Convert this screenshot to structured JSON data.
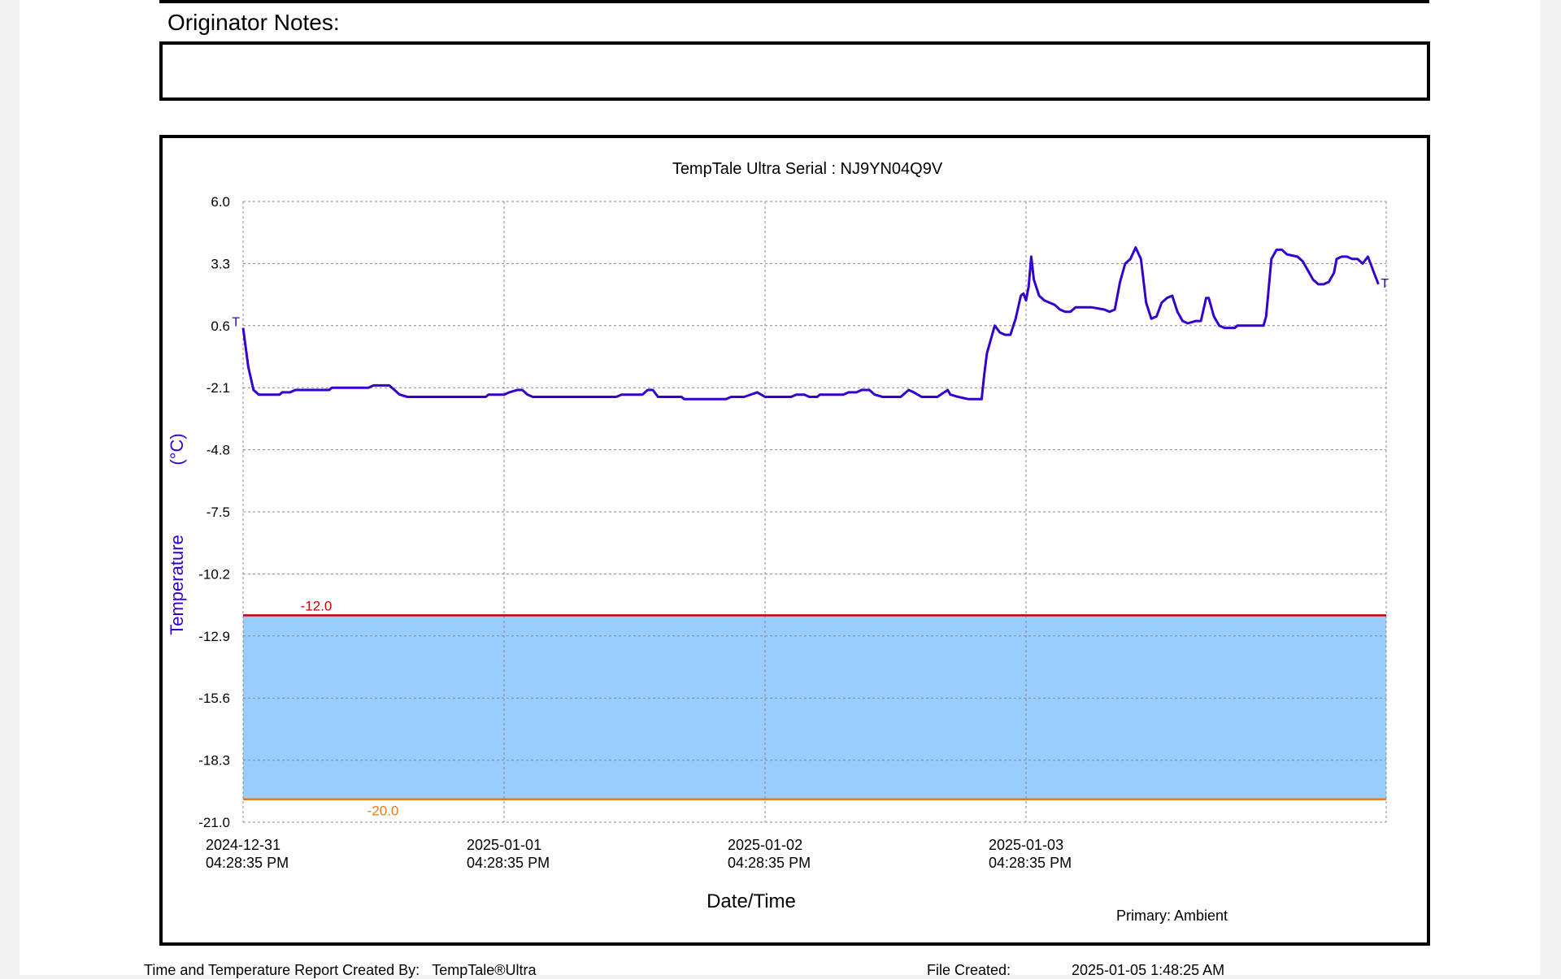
{
  "header": {
    "notes_label": "Originator Notes:"
  },
  "chart_data": {
    "type": "line",
    "title": "TempTale Ultra  Serial : NJ9YN04Q9V",
    "xlabel": "Date/Time",
    "ylabel_main": "Temperature",
    "ylabel_unit": "(°C)",
    "ylim": [
      -21.0,
      6.0
    ],
    "yticks": [
      "6.0",
      "3.3",
      "0.6",
      "-2.1",
      "-4.8",
      "-7.5",
      "-10.2",
      "-12.9",
      "-15.6",
      "-18.3",
      "-21.0"
    ],
    "xlim_days": [
      0,
      4.38
    ],
    "xticks": [
      {
        "day": 0,
        "date": "2024-12-31",
        "time": "04:28:35 PM"
      },
      {
        "day": 1,
        "date": "2025-01-01",
        "time": "04:28:35 PM"
      },
      {
        "day": 2,
        "date": "2025-01-02",
        "time": "04:28:35 PM"
      },
      {
        "day": 3,
        "date": "2025-01-03",
        "time": "04:28:35 PM"
      }
    ],
    "grid": true,
    "upper_limit": {
      "value": -12.0,
      "label": "-12.0",
      "color": "#cc0000"
    },
    "lower_limit": {
      "value": -20.0,
      "label": "-20.0",
      "color": "#e87a1e"
    },
    "band_color": "#99ccff",
    "series": [
      {
        "name": "Ambient",
        "color": "#3300cc",
        "points": [
          [
            0.0,
            0.5
          ],
          [
            0.02,
            -1.2
          ],
          [
            0.04,
            -2.2
          ],
          [
            0.06,
            -2.4
          ],
          [
            0.14,
            -2.4
          ],
          [
            0.15,
            -2.3
          ],
          [
            0.18,
            -2.3
          ],
          [
            0.2,
            -2.2
          ],
          [
            0.33,
            -2.2
          ],
          [
            0.34,
            -2.1
          ],
          [
            0.48,
            -2.1
          ],
          [
            0.5,
            -2.0
          ],
          [
            0.56,
            -2.0
          ],
          [
            0.58,
            -2.2
          ],
          [
            0.6,
            -2.4
          ],
          [
            0.63,
            -2.5
          ],
          [
            0.93,
            -2.5
          ],
          [
            0.94,
            -2.4
          ],
          [
            1.0,
            -2.4
          ],
          [
            1.02,
            -2.3
          ],
          [
            1.05,
            -2.2
          ],
          [
            1.07,
            -2.2
          ],
          [
            1.09,
            -2.4
          ],
          [
            1.11,
            -2.5
          ],
          [
            1.43,
            -2.5
          ],
          [
            1.45,
            -2.4
          ],
          [
            1.53,
            -2.4
          ],
          [
            1.55,
            -2.2
          ],
          [
            1.57,
            -2.2
          ],
          [
            1.59,
            -2.5
          ],
          [
            1.68,
            -2.5
          ],
          [
            1.69,
            -2.6
          ],
          [
            1.85,
            -2.6
          ],
          [
            1.87,
            -2.5
          ],
          [
            1.92,
            -2.5
          ],
          [
            1.97,
            -2.3
          ],
          [
            2.0,
            -2.5
          ],
          [
            2.1,
            -2.5
          ],
          [
            2.12,
            -2.4
          ],
          [
            2.15,
            -2.4
          ],
          [
            2.17,
            -2.5
          ],
          [
            2.2,
            -2.5
          ],
          [
            2.21,
            -2.4
          ],
          [
            2.3,
            -2.4
          ],
          [
            2.32,
            -2.3
          ],
          [
            2.35,
            -2.3
          ],
          [
            2.37,
            -2.2
          ],
          [
            2.4,
            -2.2
          ],
          [
            2.42,
            -2.4
          ],
          [
            2.45,
            -2.5
          ],
          [
            2.52,
            -2.5
          ],
          [
            2.55,
            -2.2
          ],
          [
            2.57,
            -2.3
          ],
          [
            2.6,
            -2.5
          ],
          [
            2.66,
            -2.5
          ],
          [
            2.7,
            -2.2
          ],
          [
            2.71,
            -2.4
          ],
          [
            2.74,
            -2.5
          ],
          [
            2.78,
            -2.6
          ],
          [
            2.83,
            -2.6
          ],
          [
            2.84,
            -1.5
          ],
          [
            2.85,
            -0.6
          ],
          [
            2.87,
            0.2
          ],
          [
            2.88,
            0.6
          ],
          [
            2.9,
            0.3
          ],
          [
            2.92,
            0.2
          ],
          [
            2.94,
            0.2
          ],
          [
            2.96,
            0.9
          ],
          [
            2.98,
            1.9
          ],
          [
            2.99,
            2.0
          ],
          [
            3.0,
            1.7
          ],
          [
            3.01,
            2.3
          ],
          [
            3.02,
            3.6
          ],
          [
            3.03,
            2.6
          ],
          [
            3.05,
            1.9
          ],
          [
            3.07,
            1.7
          ],
          [
            3.09,
            1.6
          ],
          [
            3.11,
            1.5
          ],
          [
            3.13,
            1.3
          ],
          [
            3.15,
            1.2
          ],
          [
            3.17,
            1.2
          ],
          [
            3.19,
            1.4
          ],
          [
            3.25,
            1.4
          ],
          [
            3.3,
            1.3
          ],
          [
            3.32,
            1.2
          ],
          [
            3.34,
            1.3
          ],
          [
            3.36,
            2.5
          ],
          [
            3.38,
            3.3
          ],
          [
            3.4,
            3.5
          ],
          [
            3.42,
            4.0
          ],
          [
            3.44,
            3.5
          ],
          [
            3.46,
            1.6
          ],
          [
            3.48,
            0.9
          ],
          [
            3.5,
            1.0
          ],
          [
            3.52,
            1.6
          ],
          [
            3.54,
            1.8
          ],
          [
            3.56,
            1.9
          ],
          [
            3.58,
            1.2
          ],
          [
            3.6,
            0.8
          ],
          [
            3.62,
            0.7
          ],
          [
            3.65,
            0.8
          ],
          [
            3.67,
            0.8
          ],
          [
            3.69,
            1.8
          ],
          [
            3.7,
            1.8
          ],
          [
            3.72,
            1.0
          ],
          [
            3.74,
            0.6
          ],
          [
            3.76,
            0.5
          ],
          [
            3.8,
            0.5
          ],
          [
            3.81,
            0.6
          ],
          [
            3.85,
            0.6
          ],
          [
            3.91,
            0.6
          ],
          [
            3.92,
            1.0
          ],
          [
            3.94,
            3.5
          ],
          [
            3.96,
            3.9
          ],
          [
            3.98,
            3.9
          ],
          [
            4.0,
            3.7
          ],
          [
            4.04,
            3.6
          ],
          [
            4.06,
            3.4
          ],
          [
            4.08,
            3.0
          ],
          [
            4.1,
            2.6
          ],
          [
            4.12,
            2.4
          ],
          [
            4.14,
            2.4
          ],
          [
            4.16,
            2.5
          ],
          [
            4.18,
            2.9
          ],
          [
            4.19,
            3.5
          ],
          [
            4.21,
            3.6
          ],
          [
            4.23,
            3.6
          ],
          [
            4.25,
            3.5
          ],
          [
            4.27,
            3.5
          ],
          [
            4.29,
            3.3
          ],
          [
            4.31,
            3.6
          ],
          [
            4.33,
            3.0
          ],
          [
            4.35,
            2.4
          ]
        ]
      }
    ],
    "markers": [
      {
        "label": "T",
        "side": "start"
      },
      {
        "label": "T",
        "side": "end"
      }
    ],
    "legend": {
      "label": "Primary: Ambient",
      "placement": "bottom-right"
    }
  },
  "footer": {
    "created_by_label": "Time and Temperature Report Created By:",
    "created_by_value": "TempTale®Ultra",
    "file_created_label": "File Created:",
    "file_created_value": "2025-01-05  1:48:25 AM"
  }
}
